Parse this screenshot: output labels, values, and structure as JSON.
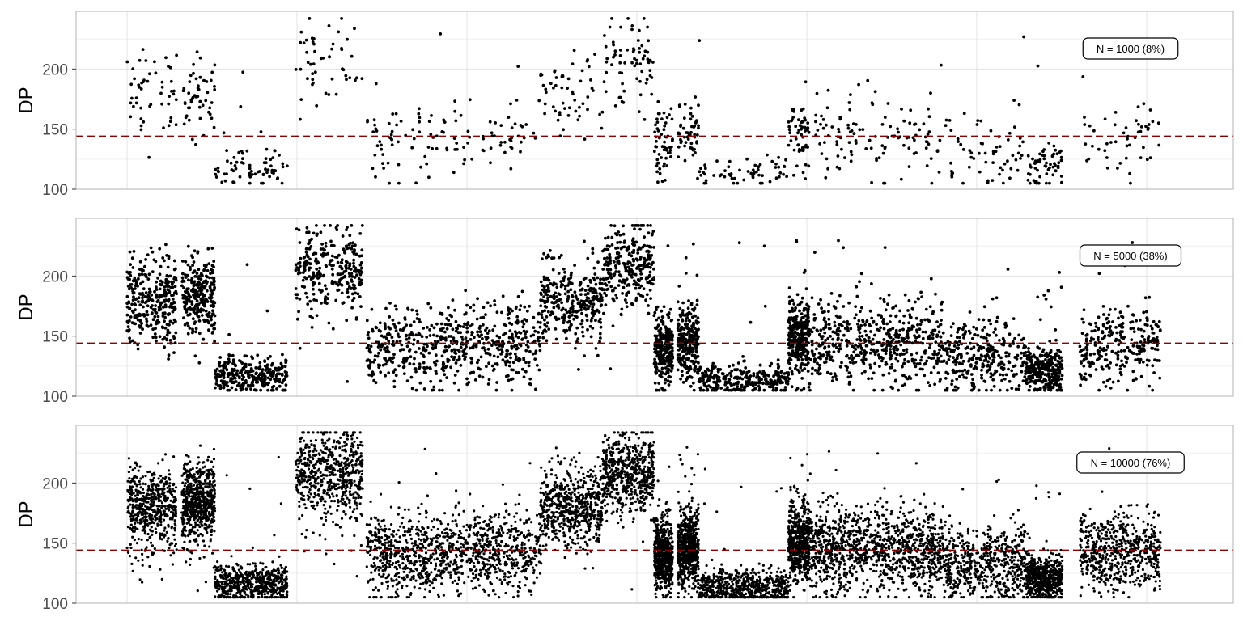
{
  "chart_data": [
    {
      "type": "scatter",
      "ylabel": "DP",
      "ylim": [
        100,
        248
      ],
      "y_ticks": [
        100,
        150,
        200
      ],
      "reference_line": 144,
      "annotation": "N = 1000 (8%)",
      "n_points": 1000,
      "grid": true
    },
    {
      "type": "scatter",
      "ylabel": "DP",
      "ylim": [
        100,
        248
      ],
      "y_ticks": [
        100,
        150,
        200
      ],
      "reference_line": 144,
      "annotation": "N = 5000 (38%)",
      "n_points": 5000,
      "grid": true
    },
    {
      "type": "scatter",
      "ylabel": "DP",
      "ylim": [
        100,
        248
      ],
      "y_ticks": [
        100,
        150,
        200
      ],
      "reference_line": 144,
      "annotation": "N = 10000 (76%)",
      "n_points": 10000,
      "grid": true
    }
  ],
  "colors": {
    "points": "#000000",
    "reference_line": "#8b0000",
    "grid": "#e3e3e3",
    "panel_border": "#b3b3b3",
    "tick_text": "#4d4d4d"
  }
}
